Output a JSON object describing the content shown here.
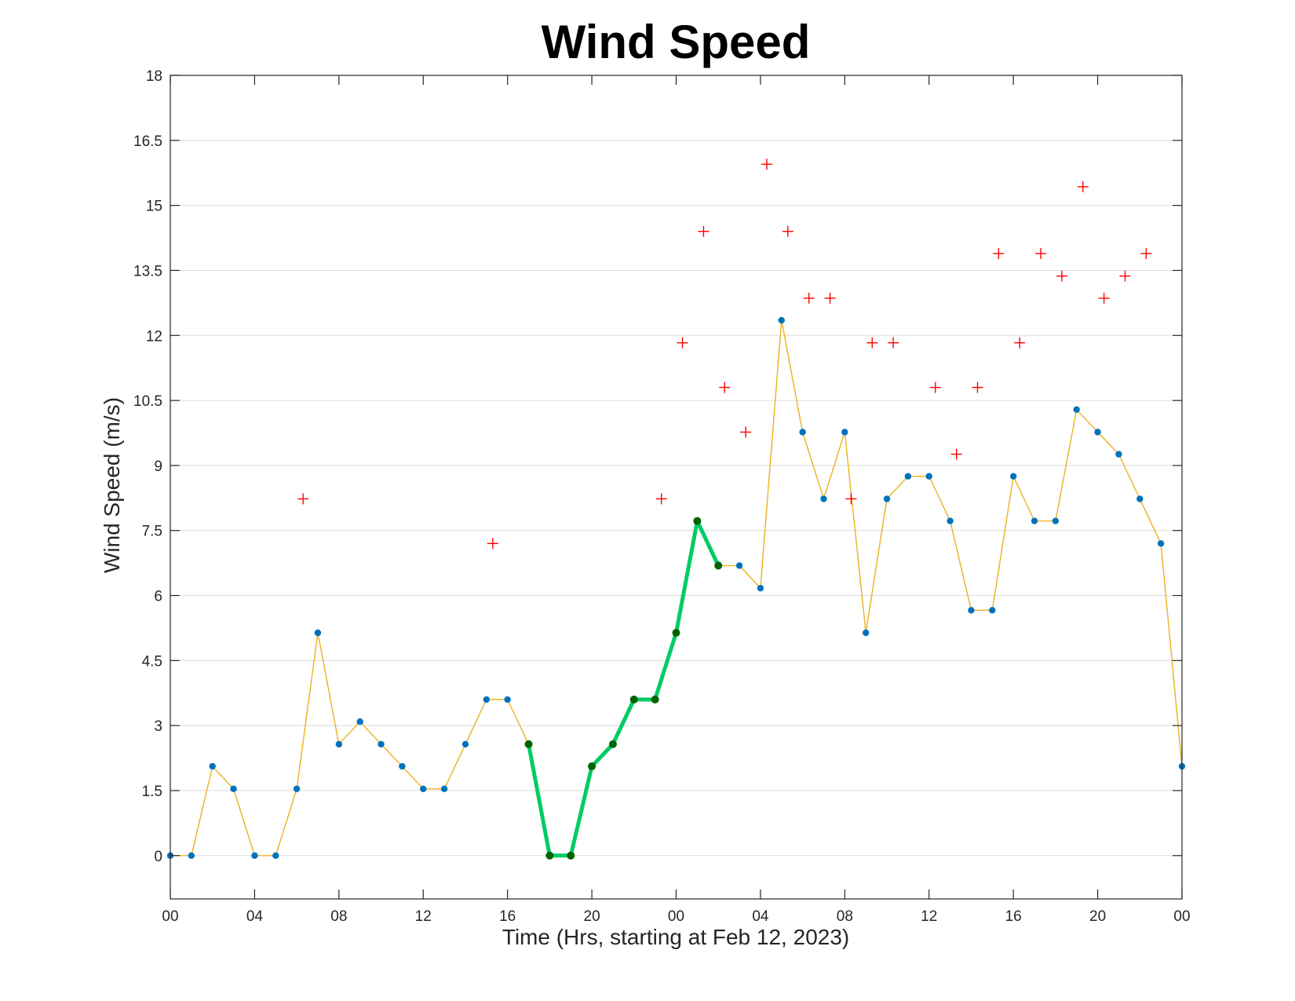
{
  "chart_data": {
    "type": "line",
    "title": "Wind Speed",
    "xlabel": "Time (Hrs, starting at Feb 12, 2023)",
    "ylabel": "Wind Speed (m/s)",
    "x_unit": "hours since 00:00 Feb 12, 2023",
    "xlim": [
      0,
      48
    ],
    "ylim": [
      -1,
      18
    ],
    "x_ticks": [
      0,
      4,
      8,
      12,
      16,
      20,
      24,
      28,
      32,
      36,
      40,
      44,
      48
    ],
    "x_tick_labels": [
      "00",
      "04",
      "08",
      "12",
      "16",
      "20",
      "00",
      "04",
      "08",
      "12",
      "16",
      "20",
      "00"
    ],
    "y_ticks": [
      0,
      1.5,
      3,
      4.5,
      6,
      7.5,
      9,
      10.5,
      12,
      13.5,
      15,
      16.5,
      18
    ],
    "y_tick_labels": [
      "0",
      "1.5",
      "3",
      "4.5",
      "6",
      "7.5",
      "9",
      "10.5",
      "12",
      "13.5",
      "15",
      "16.5",
      "18"
    ],
    "grid": "horizontal",
    "series": [
      {
        "style": "thin-line-with-dots",
        "line_color": "#EDB120",
        "marker_color": "#0072BD",
        "x": [
          0,
          1,
          2,
          3,
          4,
          5,
          6,
          7,
          8,
          9,
          10,
          11,
          12,
          13,
          14,
          15,
          16,
          17,
          18,
          19,
          20,
          21,
          22,
          23,
          24,
          25,
          26,
          27,
          28,
          29,
          30,
          31,
          32,
          33,
          34,
          35,
          36,
          37,
          38,
          39,
          40,
          41,
          42,
          43,
          44,
          45,
          46,
          47,
          48
        ],
        "y": [
          0,
          0,
          2.06,
          1.54,
          0,
          0,
          1.54,
          5.14,
          2.57,
          3.09,
          2.57,
          2.06,
          1.54,
          1.54,
          2.57,
          3.6,
          3.6,
          2.57,
          0,
          0,
          2.06,
          2.57,
          3.6,
          3.6,
          5.14,
          7.72,
          6.69,
          6.69,
          6.17,
          12.35,
          9.77,
          8.23,
          9.77,
          5.14,
          8.23,
          8.75,
          8.75,
          7.72,
          5.66,
          5.66,
          8.75,
          7.72,
          7.72,
          10.29,
          9.77,
          9.26,
          8.23,
          7.2,
          2.06
        ]
      },
      {
        "style": "thick-line-with-dots",
        "line_color": "#00CC66",
        "marker_color": "#006400",
        "x": [
          17,
          18,
          19,
          20,
          21,
          22,
          23,
          24,
          25,
          26
        ],
        "y": [
          2.57,
          0,
          0,
          2.06,
          2.57,
          3.6,
          3.6,
          5.14,
          7.72,
          6.69
        ]
      },
      {
        "style": "plus-markers",
        "marker_color": "#FF0000",
        "x": [
          6.3,
          15.3,
          23.3,
          24.3,
          25.3,
          26.3,
          27.3,
          28.3,
          29.3,
          30.3,
          31.3,
          32.3,
          33.3,
          34.3,
          36.3,
          37.3,
          38.3,
          39.3,
          40.3,
          41.3,
          42.3,
          43.3,
          44.3,
          45.3,
          46.3
        ],
        "y": [
          8.23,
          7.2,
          8.23,
          11.83,
          14.4,
          10.8,
          9.77,
          15.95,
          14.4,
          12.86,
          12.86,
          8.23,
          11.83,
          11.83,
          10.8,
          9.26,
          10.8,
          13.89,
          11.83,
          13.89,
          13.37,
          15.43,
          12.86,
          13.37,
          13.89
        ]
      }
    ]
  }
}
